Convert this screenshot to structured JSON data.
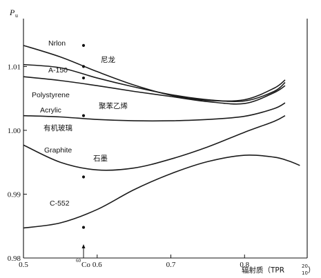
{
  "chart_data": {
    "type": "line",
    "ylabel": "P",
    "ylabel_sub": "u",
    "xlabel": "辐射质（TPR",
    "xlabel_sup": "20",
    "xlabel_sub": "10",
    "xlabel_close": "）",
    "xlim": [
      0.5,
      0.885
    ],
    "ylim": [
      0.98,
      1.0175
    ],
    "xticks": [
      {
        "value": 0.5,
        "label": "0.5"
      },
      {
        "value": 0.6,
        "label": "0.6"
      },
      {
        "value": 0.7,
        "label": "0.7"
      },
      {
        "value": 0.8,
        "label": "0.8"
      }
    ],
    "yticks": [
      {
        "value": 0.98,
        "label": "0.98"
      },
      {
        "value": 0.99,
        "label": "0.99"
      },
      {
        "value": 1.0,
        "label": "1.00"
      },
      {
        "value": 1.01,
        "label": "1.01"
      }
    ],
    "annotation": {
      "x": 0.5815,
      "sup": "60",
      "text": "Co"
    },
    "series": [
      {
        "name": "Nrlon",
        "name_zh": "尼龙",
        "x": [
          0.5,
          0.55,
          0.6,
          0.65,
          0.7,
          0.75,
          0.8,
          0.84,
          0.855
        ],
        "values": [
          1.0133,
          1.0115,
          1.0092,
          1.0071,
          1.0055,
          1.0047,
          1.0048,
          1.0066,
          1.0079
        ]
      },
      {
        "name": "A-150",
        "name_zh": "",
        "x": [
          0.5,
          0.55,
          0.6,
          0.65,
          0.7,
          0.75,
          0.8,
          0.84,
          0.855
        ],
        "values": [
          1.0103,
          1.0098,
          1.0082,
          1.0068,
          1.0056,
          1.0048,
          1.0046,
          1.0061,
          1.0075
        ]
      },
      {
        "name": "Polystyrene",
        "name_zh": "聚苯乙烯",
        "x": [
          0.5,
          0.55,
          0.6,
          0.65,
          0.7,
          0.75,
          0.8,
          0.84,
          0.855
        ],
        "values": [
          1.0084,
          1.0078,
          1.007,
          1.0061,
          1.0053,
          1.0045,
          1.0042,
          1.0059,
          1.007
        ]
      },
      {
        "name": "Acrylic",
        "name_zh": "有机玻璃",
        "x": [
          0.5,
          0.55,
          0.6,
          0.65,
          0.7,
          0.75,
          0.8,
          0.84,
          0.855
        ],
        "values": [
          1.0023,
          1.0021,
          1.0017,
          1.0015,
          1.0015,
          1.0017,
          1.0022,
          1.0034,
          1.0043
        ]
      },
      {
        "name": "Graphite",
        "name_zh": "石墨",
        "x": [
          0.5,
          0.55,
          0.6,
          0.65,
          0.7,
          0.75,
          0.8,
          0.84,
          0.855
        ],
        "values": [
          0.9977,
          0.995,
          0.9938,
          0.9941,
          0.9955,
          0.9974,
          0.9997,
          1.0014,
          1.0023
        ]
      },
      {
        "name": "C-552",
        "name_zh": "",
        "x": [
          0.5,
          0.55,
          0.6,
          0.65,
          0.7,
          0.75,
          0.8,
          0.84,
          0.86,
          0.875
        ],
        "values": [
          0.9847,
          0.9855,
          0.9876,
          0.9907,
          0.9932,
          0.9951,
          0.9961,
          0.9958,
          0.9952,
          0.9945
        ]
      }
    ],
    "points": [
      {
        "series": "Nrlon",
        "x": 0.5815,
        "y": 1.0133
      },
      {
        "series": "A-150",
        "x": 0.5815,
        "y": 1.01
      },
      {
        "series": "Polystyrene",
        "x": 0.5815,
        "y": 1.0082
      },
      {
        "series": "Acrylic",
        "x": 0.5815,
        "y": 1.0023
      },
      {
        "series": "Graphite",
        "x": 0.5815,
        "y": 0.9927
      },
      {
        "series": "C-552",
        "x": 0.5815,
        "y": 0.9848
      }
    ]
  }
}
